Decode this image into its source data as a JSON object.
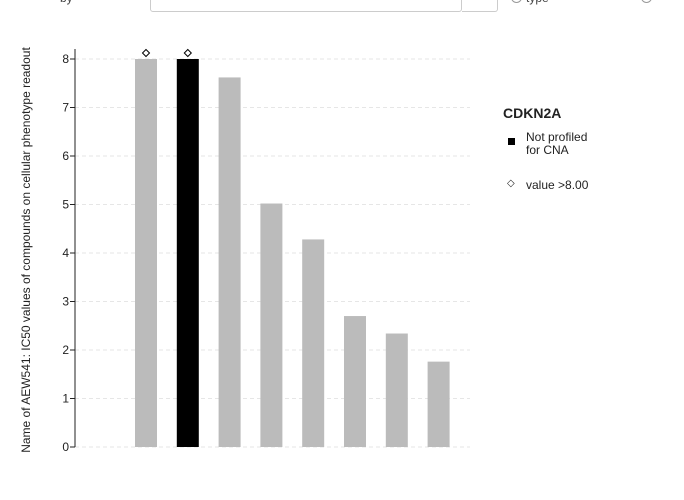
{
  "toolbar": {
    "left_label": "by",
    "right_label": "type"
  },
  "chart_data": {
    "type": "bar",
    "ylabel": "Name of AEW541: IC50 values of compounds on cellular phenotype readout",
    "ylim": [
      0,
      8
    ],
    "yticks": [
      0,
      1,
      2,
      3,
      4,
      5,
      6,
      7,
      8
    ],
    "grid": true,
    "values": [
      8.0,
      8.0,
      7.62,
      5.02,
      4.28,
      2.7,
      2.34,
      1.76
    ],
    "capped": [
      true,
      true,
      false,
      false,
      false,
      false,
      false,
      false
    ],
    "highlight": [
      false,
      true,
      false,
      false,
      false,
      false,
      false,
      false
    ],
    "colors": {
      "default": "#bbbbbb",
      "highlight": "#000000"
    },
    "legend": {
      "position": "right",
      "title": "CDKN2A",
      "items": [
        {
          "label_line1": "Not profiled",
          "label_line2": "for CNA",
          "marker": "square",
          "color": "#000000"
        },
        {
          "label_line1": "value >8.00",
          "label_line2": "",
          "marker": "diamond"
        }
      ]
    }
  }
}
